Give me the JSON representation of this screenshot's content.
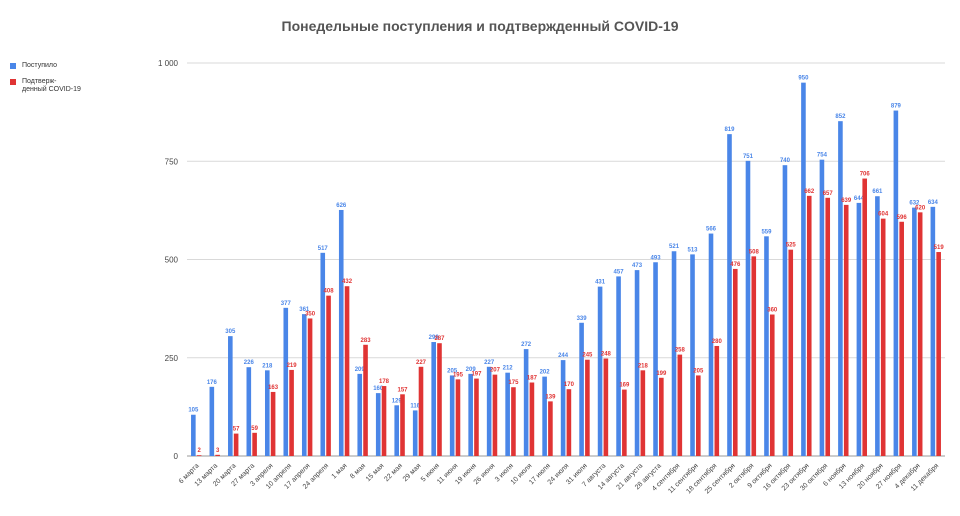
{
  "chart_data": {
    "type": "bar",
    "title": "Понедельные поступления и подтвержденный COVID-19",
    "xlabel": "",
    "ylabel": "",
    "ylim": [
      0,
      1000
    ],
    "yticks": [
      "0",
      "250",
      "500",
      "750",
      "1 000"
    ],
    "ytick_values": [
      0,
      250,
      500,
      750,
      1000
    ],
    "grid": true,
    "legend_position": "left",
    "categories": [
      "6 марта",
      "13 марта",
      "20 марта",
      "27 марта",
      "3 апреля",
      "10 апреля",
      "17 апреля",
      "24 апреля",
      "1 мая",
      "8 мая",
      "15 мая",
      "22 мая",
      "29 мая",
      "5 июня",
      "11 июня",
      "19 июня",
      "26 июня",
      "3 июля",
      "10 июля",
      "17 июля",
      "24 июля",
      "31 июля",
      "7 августа",
      "14 августа",
      "21 августа",
      "28 августа",
      "4 сентября",
      "11 сентября",
      "18 сентября",
      "25 сентября",
      "2 октября",
      "9 октября",
      "16 октября",
      "23 октября",
      "30 октября",
      "6 ноября",
      "13 ноября",
      "20 ноября",
      "27 ноября",
      "4 декабря",
      "11 декабря"
    ],
    "series": [
      {
        "name": "Поступило",
        "color": "#4a86e8",
        "values": [
          105,
          176,
          305,
          226,
          218,
          377,
          361,
          517,
          626,
          209,
          160,
          129,
          116,
          290,
          205,
          209,
          227,
          212,
          272,
          202,
          244,
          339,
          431,
          457,
          473,
          493,
          521,
          513,
          566,
          819,
          751,
          559,
          740,
          950,
          754,
          852,
          644,
          661,
          879,
          632,
          634
        ]
      },
      {
        "name": "Подтверж-\nденный COVID-19",
        "color": "#e03434",
        "values": [
          2,
          3,
          57,
          59,
          163,
          219,
          350,
          408,
          432,
          283,
          178,
          157,
          227,
          287,
          195,
          197,
          207,
          175,
          187,
          139,
          170,
          245,
          248,
          169,
          218,
          199,
          258,
          205,
          280,
          476,
          508,
          360,
          525,
          662,
          657,
          639,
          706,
          604,
          596,
          620,
          519
        ]
      }
    ]
  }
}
